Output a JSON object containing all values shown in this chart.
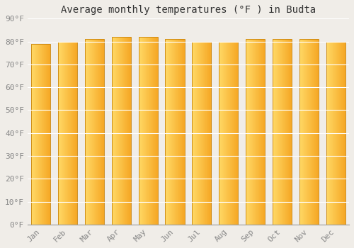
{
  "title": "Average monthly temperatures (°F ) in Budta",
  "months": [
    "Jan",
    "Feb",
    "Mar",
    "Apr",
    "May",
    "Jun",
    "Jul",
    "Aug",
    "Sep",
    "Oct",
    "Nov",
    "Dec"
  ],
  "values": [
    79,
    80,
    81,
    82,
    82,
    81,
    80,
    80,
    81,
    81,
    81,
    80
  ],
  "ylim": [
    0,
    90
  ],
  "yticks": [
    0,
    10,
    20,
    30,
    40,
    50,
    60,
    70,
    80,
    90
  ],
  "ytick_labels": [
    "0°F",
    "10°F",
    "20°F",
    "30°F",
    "40°F",
    "50°F",
    "60°F",
    "70°F",
    "80°F",
    "90°F"
  ],
  "bar_color_left": "#FFD966",
  "bar_color_right": "#F5A623",
  "bar_edge_color": "#C8820A",
  "background_color": "#f0ede8",
  "grid_color": "#ffffff",
  "title_fontsize": 10,
  "tick_fontsize": 8,
  "title_font": "monospace",
  "tick_font": "monospace",
  "tick_color": "#888888",
  "title_color": "#333333"
}
